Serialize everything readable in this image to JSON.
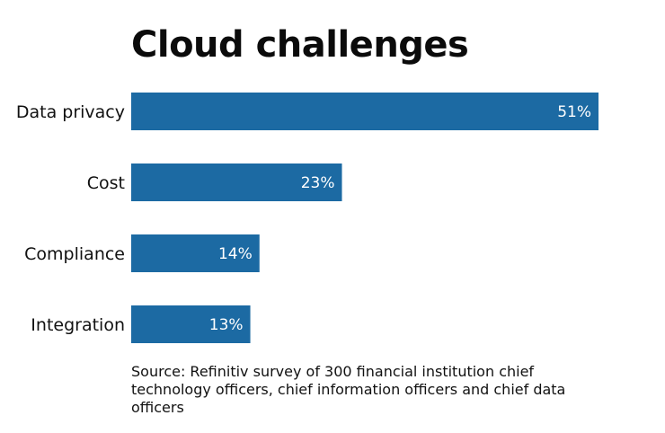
{
  "chart_data": {
    "type": "bar",
    "orientation": "horizontal",
    "title": "Cloud challenges",
    "categories": [
      "Data privacy",
      "Cost",
      "Compliance",
      "Integration"
    ],
    "values": [
      51,
      23,
      14,
      13
    ],
    "value_labels": [
      "51%",
      "23%",
      "14%",
      "13%"
    ],
    "unit": "%",
    "xlabel": "",
    "ylabel": "",
    "xlim": [
      0,
      51
    ],
    "grid": false,
    "legend": "none",
    "bar_color": "#1c6aa3",
    "source": "Source: Refinitiv survey of 300 financial institution chief technology officers, chief information officers and chief data officers"
  }
}
